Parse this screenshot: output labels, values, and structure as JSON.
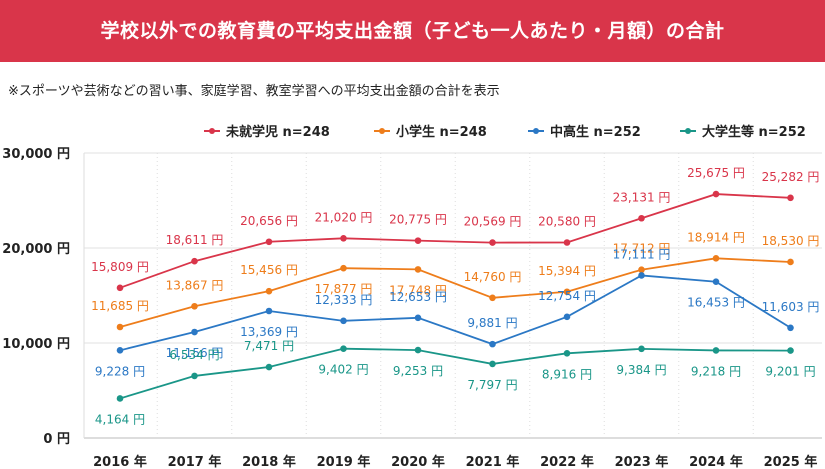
{
  "header": {
    "title": "学校以外での教育費の平均支出金額（子ども一人あたり・月額）の合計",
    "subtitle": "※スポーツや芸術などの習い事、家庭学習、教室学習への平均支出金額の合計を表示"
  },
  "chart_data": {
    "type": "line",
    "title": "学校以外での教育費の平均支出金額（子ども一人あたり・月額）の合計",
    "categories": [
      "2016 年",
      "2017 年",
      "2018 年",
      "2019 年",
      "2020 年",
      "2021 年",
      "2022 年",
      "2023 年",
      "2024 年",
      "2025 年"
    ],
    "y_ticks": [
      "0 円",
      "10,000 円",
      "20,000 円",
      "30,000 円"
    ],
    "ylim": [
      0,
      30000
    ],
    "legend_position": "top-right",
    "series": [
      {
        "name": "未就学児 n=248",
        "color": "#d9354a",
        "values": [
          15809,
          18611,
          20656,
          21020,
          20775,
          20569,
          20580,
          23131,
          25675,
          25282
        ],
        "labels": [
          "15,809 円",
          "18,611 円",
          "20,656 円",
          "21,020 円",
          "20,775 円",
          "20,569 円",
          "20,580 円",
          "23,131 円",
          "25,675 円",
          "25,282 円"
        ]
      },
      {
        "name": "小学生 n=248",
        "color": "#ee7d1b",
        "values": [
          11685,
          13867,
          15456,
          17877,
          17748,
          14760,
          15394,
          17712,
          18914,
          18530
        ],
        "labels": [
          "11,685 円",
          "13,867 円",
          "15,456 円",
          "17,877 円",
          "17,748 円",
          "14,760 円",
          "15,394 円",
          "17,712 円",
          "18,914 円",
          "18,530 円"
        ]
      },
      {
        "name": "中高生 n=252",
        "color": "#2b78c5",
        "values": [
          9228,
          11156,
          13369,
          12333,
          12653,
          9881,
          12754,
          17111,
          16453,
          11603
        ],
        "labels": [
          "9,228 円",
          "11,156 円",
          "13,369 円",
          "12,333 円",
          "12,653 円",
          "9,881 円",
          "12,754 円",
          "17,111 円",
          "16,453 円",
          "11,603 円"
        ]
      },
      {
        "name": "大学生等 n=252",
        "color": "#1a9688",
        "values": [
          4164,
          6534,
          7471,
          9402,
          9253,
          7797,
          8916,
          9384,
          9218,
          9201
        ],
        "labels": [
          "4,164 円",
          "6,534 円",
          "7,471 円",
          "9,402 円",
          "9,253 円",
          "7,797 円",
          "8,916 円",
          "9,384 円",
          "9,218 円",
          "9,201 円"
        ]
      }
    ]
  }
}
